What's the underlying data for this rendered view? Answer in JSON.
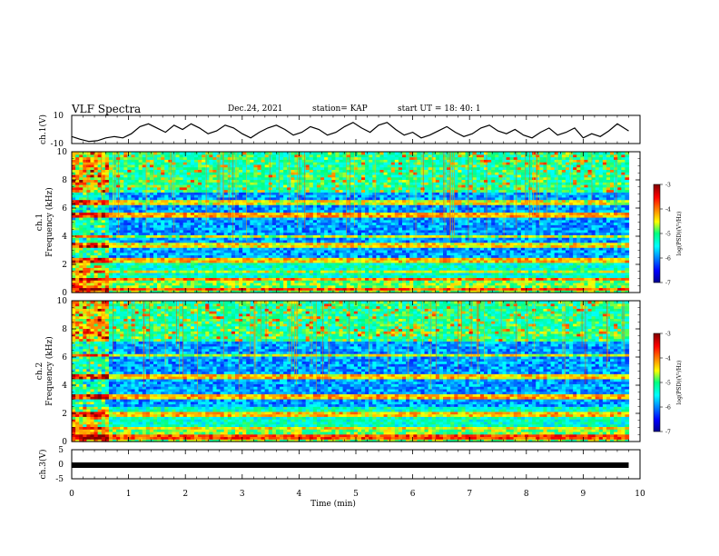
{
  "header": {
    "title": "VLF Spectra",
    "date": "Dec.24, 2021",
    "station": "station= KAP",
    "start": "start UT =  18: 40: 1"
  },
  "chart_data": [
    {
      "type": "line",
      "panel": "ch1-waveform",
      "ylabel": "ch.1(V)",
      "ylim": [
        -10,
        10
      ],
      "yticks": [
        "10",
        "-10"
      ],
      "x": [
        0.0,
        0.15,
        0.3,
        0.45,
        0.6,
        0.75,
        0.9,
        1.05,
        1.2,
        1.35,
        1.5,
        1.65,
        1.8,
        1.95,
        2.1,
        2.25,
        2.4,
        2.55,
        2.7,
        2.85,
        3.0,
        3.15,
        3.3,
        3.45,
        3.6,
        3.75,
        3.9,
        4.05,
        4.2,
        4.35,
        4.5,
        4.65,
        4.8,
        4.95,
        5.1,
        5.25,
        5.4,
        5.55,
        5.7,
        5.85,
        6.0,
        6.15,
        6.3,
        6.45,
        6.6,
        6.75,
        6.9,
        7.05,
        7.2,
        7.35,
        7.5,
        7.65,
        7.8,
        7.95,
        8.1,
        8.25,
        8.4,
        8.55,
        8.7,
        8.85,
        9.0,
        9.15,
        9.3,
        9.45,
        9.6,
        9.8
      ],
      "y": [
        -5,
        -7,
        -8.5,
        -8,
        -6,
        -5,
        -6,
        -3,
        2,
        4,
        1,
        -2,
        3,
        0,
        4,
        1,
        -3,
        -1,
        3,
        1,
        -3,
        -6,
        -2,
        1,
        3,
        0,
        -4,
        -2,
        2,
        0,
        -4,
        -2,
        2,
        5,
        1,
        -2,
        3,
        5,
        0,
        -4,
        -2,
        -6,
        -4,
        -1,
        2,
        -2,
        -5,
        -3,
        1,
        3,
        -1,
        -3,
        0,
        -4,
        -6,
        -2,
        1,
        -4,
        -2,
        1,
        -6,
        -3,
        -5,
        -1,
        4,
        -1
      ]
    },
    {
      "type": "heatmap",
      "panel": "ch1-spectrogram",
      "ylabel": "ch.1\nFrequency (kHz)",
      "ylim": [
        0,
        10
      ],
      "yticks": [
        "0",
        "2",
        "4",
        "6",
        "8",
        "10"
      ],
      "colorbar": {
        "label": "log(PSD)(V²/Hz)",
        "range": [
          -7,
          -3
        ],
        "ticks": [
          "-3",
          "-4",
          "-5",
          "-6",
          "-7"
        ]
      },
      "bands_khz": [
        {
          "f0": 6.3,
          "f1": 6.5,
          "level": -4.5
        },
        {
          "f0": 5.4,
          "f1": 5.55,
          "level": -4.2
        },
        {
          "f0": 4.0,
          "f1": 4.1,
          "level": -4.6
        },
        {
          "f0": 3.3,
          "f1": 3.4,
          "level": -4.4
        },
        {
          "f0": 2.2,
          "f1": 2.35,
          "level": -4.3
        },
        {
          "f0": 1.5,
          "f1": 1.6,
          "level": -4.6
        },
        {
          "f0": 0.9,
          "f1": 1.05,
          "level": -4.0
        },
        {
          "f0": 0.2,
          "f1": 0.35,
          "level": -3.8
        }
      ]
    },
    {
      "type": "heatmap",
      "panel": "ch2-spectrogram",
      "ylabel": "ch.2\nFrequency (kHz)",
      "ylim": [
        0,
        10
      ],
      "yticks": [
        "0",
        "2",
        "4",
        "6",
        "8",
        "10"
      ],
      "colorbar": {
        "label": "log(PSD)(V²/Hz)",
        "range": [
          -7,
          -3
        ],
        "ticks": [
          "-3",
          "-4",
          "-5",
          "-6",
          "-7"
        ]
      },
      "bands_khz": [
        {
          "f0": 7.7,
          "f1": 7.8,
          "level": -4.8
        },
        {
          "f0": 6.1,
          "f1": 6.25,
          "level": -4.5
        },
        {
          "f0": 4.6,
          "f1": 4.75,
          "level": -4.3
        },
        {
          "f0": 3.2,
          "f1": 3.3,
          "level": -4.2
        },
        {
          "f0": 1.9,
          "f1": 2.05,
          "level": -4.3
        },
        {
          "f0": 0.9,
          "f1": 1.0,
          "level": -4.4
        },
        {
          "f0": 0.3,
          "f1": 0.4,
          "level": -3.8
        }
      ]
    },
    {
      "type": "line",
      "panel": "ch3-waveform",
      "ylabel": "ch.3(V)",
      "ylim": [
        -5,
        5
      ],
      "yticks": [
        "5",
        "0",
        "-5"
      ],
      "x": [
        0,
        9.8
      ],
      "y": [
        -0.3,
        -0.3
      ]
    }
  ],
  "xaxis": {
    "label": "Time (min)",
    "ticks": [
      "0",
      "1",
      "2",
      "3",
      "4",
      "5",
      "6",
      "7",
      "8",
      "9",
      "10"
    ],
    "range": [
      0,
      10
    ]
  }
}
